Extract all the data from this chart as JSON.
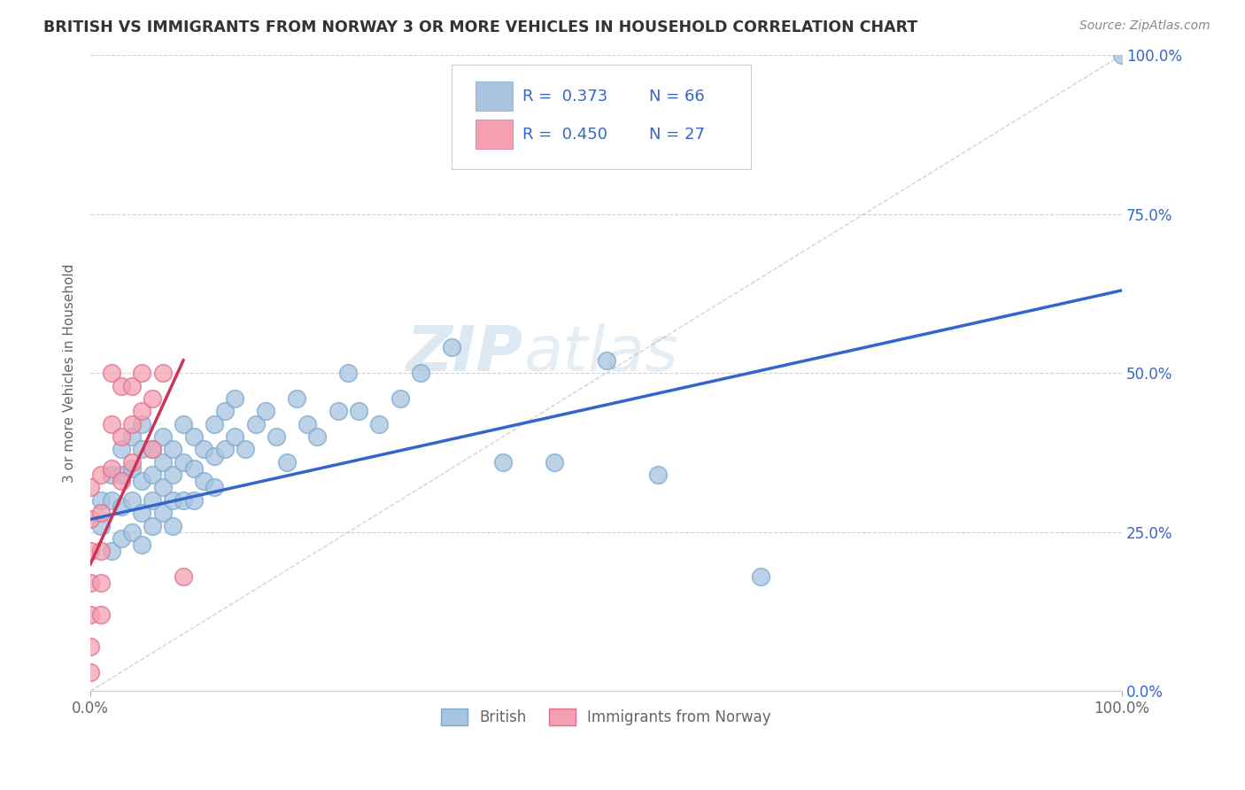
{
  "title": "BRITISH VS IMMIGRANTS FROM NORWAY 3 OR MORE VEHICLES IN HOUSEHOLD CORRELATION CHART",
  "source": "Source: ZipAtlas.com",
  "ylabel": "3 or more Vehicles in Household",
  "watermark_part1": "ZIP",
  "watermark_part2": "atlas",
  "xlim": [
    0.0,
    1.0
  ],
  "ylim": [
    0.0,
    1.0
  ],
  "xtick_positions": [
    0.0,
    1.0
  ],
  "xtick_labels": [
    "0.0%",
    "100.0%"
  ],
  "ytick_positions": [
    0.0,
    0.25,
    0.5,
    0.75,
    1.0
  ],
  "ytick_labels": [
    "0.0%",
    "25.0%",
    "50.0%",
    "75.0%",
    "100.0%"
  ],
  "legend_british_R": "R =  0.373",
  "legend_british_N": "N = 66",
  "legend_norway_R": "R =  0.450",
  "legend_norway_N": "N = 27",
  "british_color": "#a8c4e0",
  "british_edge_color": "#7aaad0",
  "norway_color": "#f4a0b0",
  "norway_edge_color": "#e07090",
  "british_line_color": "#3366cc",
  "norway_line_color": "#cc3355",
  "diagonal_color": "#c8c8c8",
  "grid_color": "#cccccc",
  "title_color": "#333333",
  "source_color": "#888888",
  "legend_R_color": "#3366cc",
  "legend_N_color": "#3366cc",
  "right_axis_color": "#3366cc",
  "label_color": "#666666",
  "legend_label_british": "British",
  "legend_label_norway": "Immigrants from Norway",
  "british_x": [
    0.01,
    0.01,
    0.02,
    0.02,
    0.02,
    0.03,
    0.03,
    0.03,
    0.03,
    0.04,
    0.04,
    0.04,
    0.04,
    0.05,
    0.05,
    0.05,
    0.05,
    0.05,
    0.06,
    0.06,
    0.06,
    0.06,
    0.07,
    0.07,
    0.07,
    0.07,
    0.08,
    0.08,
    0.08,
    0.08,
    0.09,
    0.09,
    0.09,
    0.1,
    0.1,
    0.1,
    0.11,
    0.11,
    0.12,
    0.12,
    0.12,
    0.13,
    0.13,
    0.14,
    0.14,
    0.15,
    0.16,
    0.17,
    0.18,
    0.19,
    0.2,
    0.21,
    0.22,
    0.24,
    0.25,
    0.26,
    0.28,
    0.3,
    0.32,
    0.35,
    0.4,
    0.45,
    0.5,
    0.55,
    0.65,
    1.0
  ],
  "british_y": [
    0.3,
    0.26,
    0.34,
    0.3,
    0.22,
    0.38,
    0.34,
    0.29,
    0.24,
    0.4,
    0.35,
    0.3,
    0.25,
    0.42,
    0.38,
    0.33,
    0.28,
    0.23,
    0.38,
    0.34,
    0.3,
    0.26,
    0.4,
    0.36,
    0.32,
    0.28,
    0.38,
    0.34,
    0.3,
    0.26,
    0.42,
    0.36,
    0.3,
    0.4,
    0.35,
    0.3,
    0.38,
    0.33,
    0.42,
    0.37,
    0.32,
    0.44,
    0.38,
    0.46,
    0.4,
    0.38,
    0.42,
    0.44,
    0.4,
    0.36,
    0.46,
    0.42,
    0.4,
    0.44,
    0.5,
    0.44,
    0.42,
    0.46,
    0.5,
    0.54,
    0.36,
    0.36,
    0.52,
    0.34,
    0.18,
    1.0
  ],
  "norway_x": [
    0.0,
    0.0,
    0.0,
    0.0,
    0.0,
    0.0,
    0.0,
    0.01,
    0.01,
    0.01,
    0.01,
    0.01,
    0.02,
    0.02,
    0.02,
    0.03,
    0.03,
    0.03,
    0.04,
    0.04,
    0.04,
    0.05,
    0.05,
    0.06,
    0.06,
    0.07,
    0.09
  ],
  "norway_y": [
    0.32,
    0.27,
    0.22,
    0.17,
    0.12,
    0.07,
    0.03,
    0.34,
    0.28,
    0.22,
    0.17,
    0.12,
    0.5,
    0.42,
    0.35,
    0.48,
    0.4,
    0.33,
    0.48,
    0.42,
    0.36,
    0.5,
    0.44,
    0.46,
    0.38,
    0.5,
    0.18
  ],
  "british_line_x": [
    0.0,
    1.0
  ],
  "british_line_y": [
    0.27,
    0.63
  ],
  "norway_line_x": [
    0.0,
    0.09
  ],
  "norway_line_y": [
    0.2,
    0.52
  ],
  "diagonal_line_x": [
    0.0,
    1.0
  ],
  "diagonal_line_y": [
    0.0,
    1.0
  ]
}
